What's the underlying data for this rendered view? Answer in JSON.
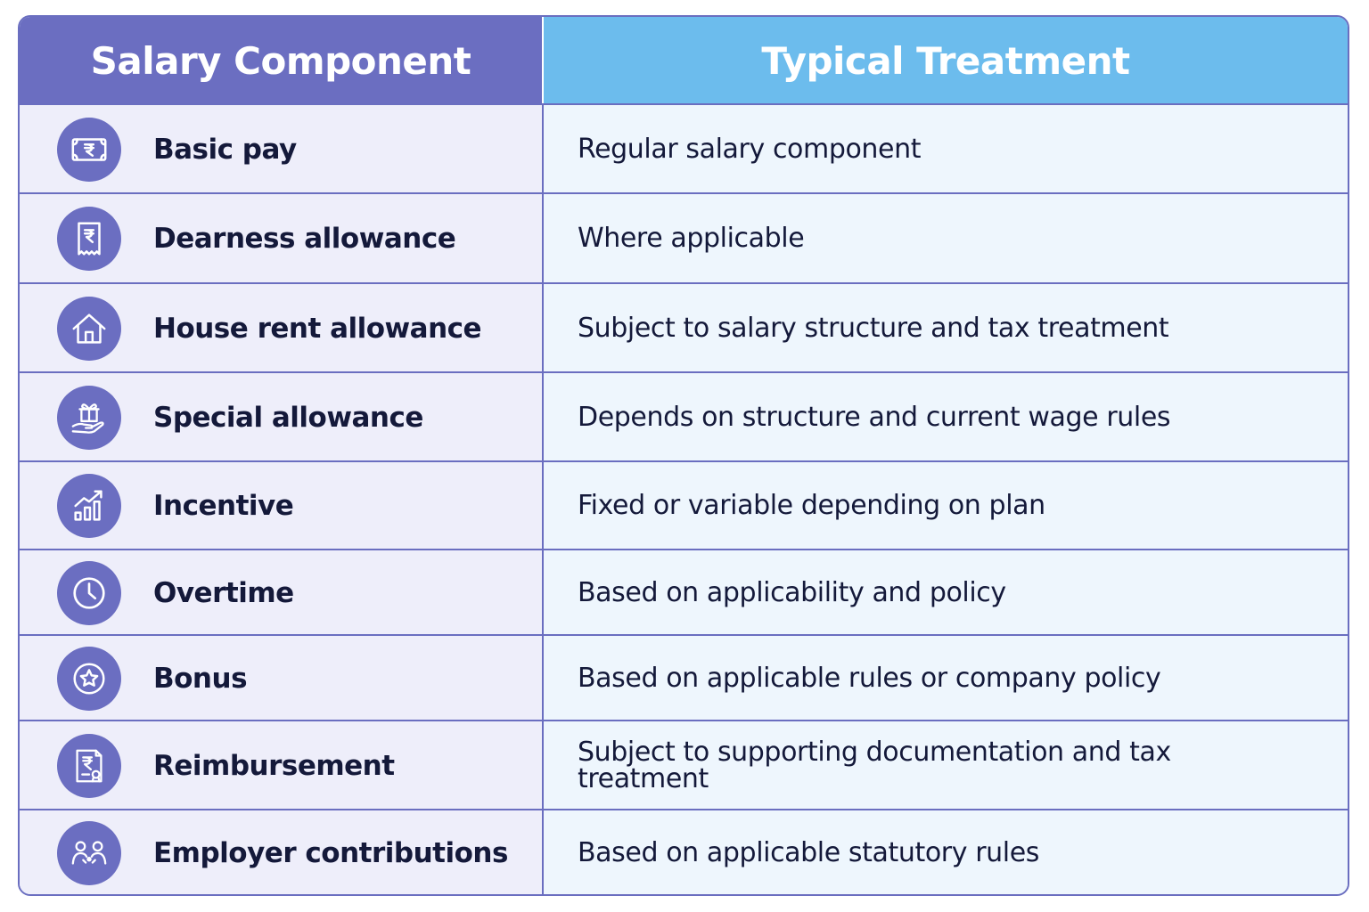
{
  "header": {
    "col1": "Salary Component",
    "col2": "Typical Treatment"
  },
  "rows": [
    {
      "component": "Basic pay",
      "treatment": "Regular salary component",
      "icon": "rupee-note-icon"
    },
    {
      "component": "Dearness allowance",
      "treatment": "Where applicable",
      "icon": "rupee-receipt-icon"
    },
    {
      "component": "House rent allowance",
      "treatment": "Subject to salary structure and tax treatment",
      "icon": "house-icon"
    },
    {
      "component": "Special allowance",
      "treatment": "Depends on structure and current wage rules",
      "icon": "gift-hand-icon"
    },
    {
      "component": "Incentive",
      "treatment": "Fixed or variable depending on plan",
      "icon": "growth-chart-icon"
    },
    {
      "component": "Overtime",
      "treatment": "Based on applicability and policy",
      "icon": "clock-icon"
    },
    {
      "component": "Bonus",
      "treatment": "Based on applicable rules or company policy",
      "icon": "star-badge-icon"
    },
    {
      "component": "Reimbursement",
      "treatment": "Subject to supporting documentation and tax treatment",
      "icon": "rupee-document-icon"
    },
    {
      "component": "Employer contributions",
      "treatment": "Based on applicable statutory rules",
      "icon": "people-icon"
    }
  ],
  "colors": {
    "header_left": "#6b6ec1",
    "header_right": "#6cbced",
    "border": "#6a6ec0",
    "left_cell": "#eeeefa",
    "right_cell": "#eef6fd",
    "text": "#14193a"
  }
}
